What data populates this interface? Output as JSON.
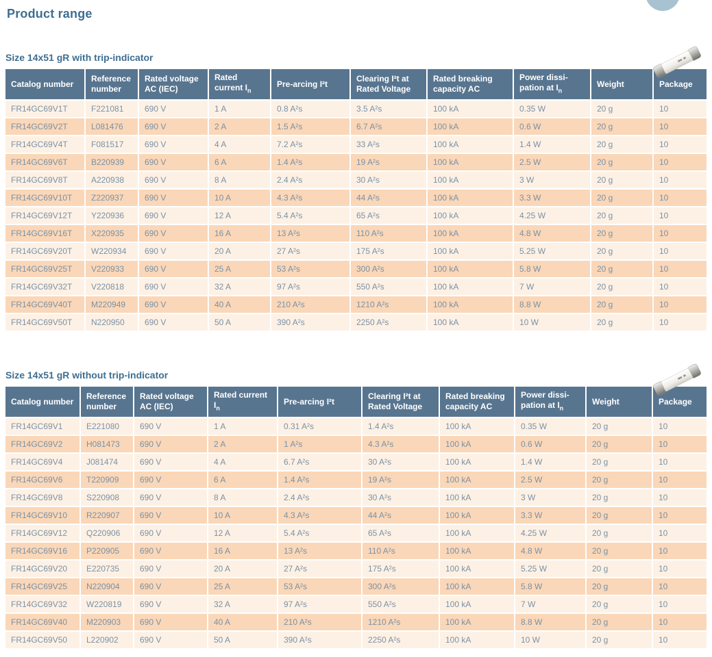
{
  "page": {
    "title": "Product range"
  },
  "colors": {
    "header_bg": "#587590",
    "row_light": "#fdf1e5",
    "row_dark": "#fad7b8",
    "heading_text": "#3e6e91",
    "cell_text": "#7b91a5"
  },
  "icons": [
    "corner-circle-decoration",
    "fuse-photo"
  ],
  "tables": [
    {
      "heading": "Size 14x51 gR with trip-indicator",
      "columns": [
        {
          "label": "Catalog number"
        },
        {
          "label": "Reference number"
        },
        {
          "label": "Rated voltage AC (IEC)"
        },
        {
          "label": "Rated current I",
          "sub": "n"
        },
        {
          "label": "Pre-arcing I²t"
        },
        {
          "label": "Clearing I²t at Rated Voltage"
        },
        {
          "label": "Rated breaking capacity AC"
        },
        {
          "label": "Power dissi-pation at I",
          "sub": "n"
        },
        {
          "label": "Weight"
        },
        {
          "label": "Package"
        }
      ],
      "rows": [
        [
          "FR14GC69V1T",
          "F221081",
          "690 V",
          "1 A",
          "0.8 A²s",
          "3.5 A²s",
          "100 kA",
          "0.35 W",
          "20 g",
          "10"
        ],
        [
          "FR14GC69V2T",
          "L081476",
          "690 V",
          "2 A",
          "1.5 A²s",
          "6.7 A²s",
          "100 kA",
          "0.6 W",
          "20 g",
          "10"
        ],
        [
          "FR14GC69V4T",
          "F081517",
          "690 V",
          "4 A",
          "7.2 A²s",
          "33 A²s",
          "100 kA",
          "1.4 W",
          "20 g",
          "10"
        ],
        [
          "FR14GC69V6T",
          "B220939",
          "690 V",
          "6 A",
          "1.4 A²s",
          "19 A²s",
          "100 kA",
          "2.5 W",
          "20 g",
          "10"
        ],
        [
          "FR14GC69V8T",
          "A220938",
          "690 V",
          "8 A",
          "2.4 A²s",
          "30 A²s",
          "100 kA",
          "3 W",
          "20 g",
          "10"
        ],
        [
          "FR14GC69V10T",
          "Z220937",
          "690 V",
          "10 A",
          "4.3 A²s",
          "44 A²s",
          "100 kA",
          "3.3 W",
          "20 g",
          "10"
        ],
        [
          "FR14GC69V12T",
          "Y220936",
          "690 V",
          "12 A",
          "5.4 A²s",
          "65 A²s",
          "100 kA",
          "4.25 W",
          "20 g",
          "10"
        ],
        [
          "FR14GC69V16T",
          "X220935",
          "690 V",
          "16 A",
          "13 A²s",
          "110 A²s",
          "100 kA",
          "4.8 W",
          "20 g",
          "10"
        ],
        [
          "FR14GC69V20T",
          "W220934",
          "690 V",
          "20 A",
          "27 A²s",
          "175 A²s",
          "100 kA",
          "5.25 W",
          "20 g",
          "10"
        ],
        [
          "FR14GC69V25T",
          "V220933",
          "690 V",
          "25 A",
          "53 A²s",
          "300 A²s",
          "100 kA",
          "5.8 W",
          "20 g",
          "10"
        ],
        [
          "FR14GC69V32T",
          "V220818",
          "690 V",
          "32 A",
          "97 A²s",
          "550 A²s",
          "100 kA",
          "7 W",
          "20 g",
          "10"
        ],
        [
          "FR14GC69V40T",
          "M220949",
          "690 V",
          "40 A",
          "210 A²s",
          "1210 A²s",
          "100 kA",
          "8.8 W",
          "20 g",
          "10"
        ],
        [
          "FR14GC69V50T",
          "N220950",
          "690 V",
          "50 A",
          "390 A²s",
          "2250 A²s",
          "100 kA",
          "10 W",
          "20 g",
          "10"
        ]
      ]
    },
    {
      "heading": "Size 14x51 gR without trip-indicator",
      "columns": [
        {
          "label": "Catalog number"
        },
        {
          "label": "Reference number"
        },
        {
          "label": "Rated voltage AC (IEC)"
        },
        {
          "label": "Rated current I",
          "sub": "n"
        },
        {
          "label": "Pre-arcing I²t"
        },
        {
          "label": "Clearing I²t at Rated Voltage"
        },
        {
          "label": "Rated breaking capacity AC"
        },
        {
          "label": "Power dissi-pation at I",
          "sub": "n"
        },
        {
          "label": "Weight"
        },
        {
          "label": "Package"
        }
      ],
      "rows": [
        [
          "FR14GC69V1",
          "E221080",
          "690 V",
          "1 A",
          "0.31 A²s",
          "1.4 A²s",
          "100 kA",
          "0.35 W",
          "20 g",
          "10"
        ],
        [
          "FR14GC69V2",
          "H081473",
          "690 V",
          "2 A",
          "1 A²s",
          "4.3 A²s",
          "100 kA",
          "0.6 W",
          "20 g",
          "10"
        ],
        [
          "FR14GC69V4",
          "J081474",
          "690 V",
          "4 A",
          "6.7 A²s",
          "30 A²s",
          "100 kA",
          "1.4 W",
          "20 g",
          "10"
        ],
        [
          "FR14GC69V6",
          "T220909",
          "690 V",
          "6 A",
          "1.4 A²s",
          "19 A²s",
          "100 kA",
          "2.5 W",
          "20 g",
          "10"
        ],
        [
          "FR14GC69V8",
          "S220908",
          "690 V",
          "8 A",
          "2.4 A²s",
          "30 A²s",
          "100 kA",
          "3 W",
          "20 g",
          "10"
        ],
        [
          "FR14GC69V10",
          "R220907",
          "690 V",
          "10 A",
          "4.3 A²s",
          "44 A²s",
          "100 kA",
          "3.3 W",
          "20 g",
          "10"
        ],
        [
          "FR14GC69V12",
          "Q220906",
          "690 V",
          "12 A",
          "5.4 A²s",
          "65 A²s",
          "100 kA",
          "4.25 W",
          "20 g",
          "10"
        ],
        [
          "FR14GC69V16",
          "P220905",
          "690 V",
          "16 A",
          "13 A²s",
          "110 A²s",
          "100 kA",
          "4.8 W",
          "20 g",
          "10"
        ],
        [
          "FR14GC69V20",
          "E220735",
          "690 V",
          "20 A",
          "27 A²s",
          "175 A²s",
          "100 kA",
          "5.25 W",
          "20 g",
          "10"
        ],
        [
          "FR14GC69V25",
          "N220904",
          "690 V",
          "25 A",
          "53 A²s",
          "300 A²s",
          "100 kA",
          "5.8 W",
          "20 g",
          "10"
        ],
        [
          "FR14GC69V32",
          "W220819",
          "690 V",
          "32 A",
          "97 A²s",
          "550 A²s",
          "100 kA",
          "7 W",
          "20 g",
          "10"
        ],
        [
          "FR14GC69V40",
          "M220903",
          "690 V",
          "40 A",
          "210 A²s",
          "1210 A²s",
          "100 kA",
          "8.8 W",
          "20 g",
          "10"
        ],
        [
          "FR14GC69V50",
          "L220902",
          "690 V",
          "50 A",
          "390 A²s",
          "2250 A²s",
          "100 kA",
          "10 W",
          "20 g",
          "10"
        ]
      ]
    }
  ]
}
